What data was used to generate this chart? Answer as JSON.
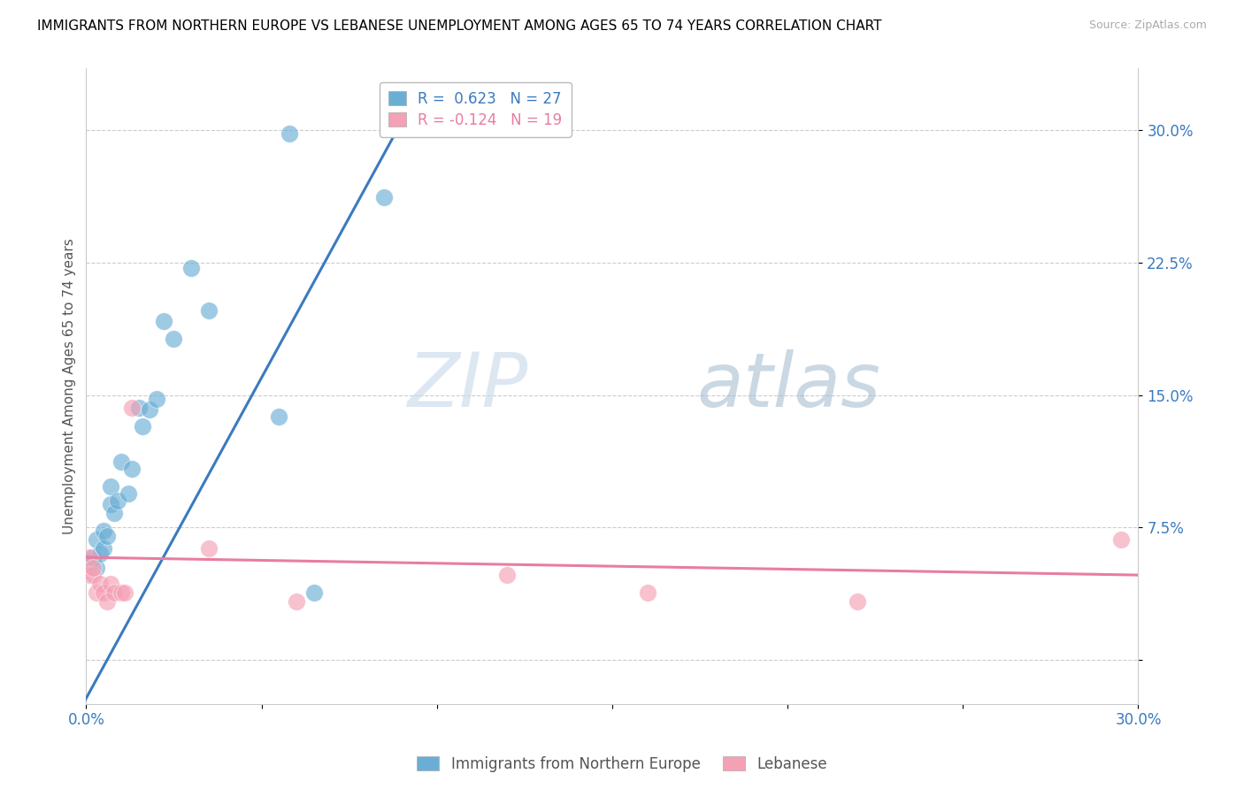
{
  "title": "IMMIGRANTS FROM NORTHERN EUROPE VS LEBANESE UNEMPLOYMENT AMONG AGES 65 TO 74 YEARS CORRELATION CHART",
  "source": "Source: ZipAtlas.com",
  "ylabel": "Unemployment Among Ages 65 to 74 years",
  "xlim": [
    0.0,
    0.3
  ],
  "ylim": [
    -0.025,
    0.335
  ],
  "xticks": [
    0.0,
    0.05,
    0.1,
    0.15,
    0.2,
    0.25,
    0.3
  ],
  "xticklabels": [
    "0.0%",
    "",
    "",
    "",
    "",
    "",
    "30.0%"
  ],
  "yticks": [
    0.0,
    0.075,
    0.15,
    0.225,
    0.3
  ],
  "yticklabels": [
    "",
    "7.5%",
    "15.0%",
    "22.5%",
    "30.0%"
  ],
  "blue_R": 0.623,
  "blue_N": 27,
  "pink_R": -0.124,
  "pink_N": 19,
  "blue_scatter": [
    [
      0.001,
      0.055
    ],
    [
      0.002,
      0.058
    ],
    [
      0.003,
      0.052
    ],
    [
      0.003,
      0.068
    ],
    [
      0.004,
      0.06
    ],
    [
      0.005,
      0.063
    ],
    [
      0.005,
      0.073
    ],
    [
      0.006,
      0.07
    ],
    [
      0.007,
      0.088
    ],
    [
      0.007,
      0.098
    ],
    [
      0.008,
      0.083
    ],
    [
      0.009,
      0.09
    ],
    [
      0.01,
      0.112
    ],
    [
      0.012,
      0.094
    ],
    [
      0.013,
      0.108
    ],
    [
      0.015,
      0.143
    ],
    [
      0.016,
      0.132
    ],
    [
      0.018,
      0.142
    ],
    [
      0.02,
      0.148
    ],
    [
      0.022,
      0.192
    ],
    [
      0.025,
      0.182
    ],
    [
      0.03,
      0.222
    ],
    [
      0.035,
      0.198
    ],
    [
      0.055,
      0.138
    ],
    [
      0.058,
      0.298
    ],
    [
      0.065,
      0.038
    ],
    [
      0.085,
      0.262
    ]
  ],
  "pink_scatter": [
    [
      0.001,
      0.048
    ],
    [
      0.001,
      0.058
    ],
    [
      0.002,
      0.048
    ],
    [
      0.002,
      0.052
    ],
    [
      0.003,
      0.038
    ],
    [
      0.004,
      0.043
    ],
    [
      0.005,
      0.038
    ],
    [
      0.006,
      0.033
    ],
    [
      0.007,
      0.043
    ],
    [
      0.008,
      0.038
    ],
    [
      0.01,
      0.038
    ],
    [
      0.011,
      0.038
    ],
    [
      0.013,
      0.143
    ],
    [
      0.035,
      0.063
    ],
    [
      0.06,
      0.033
    ],
    [
      0.12,
      0.048
    ],
    [
      0.16,
      0.038
    ],
    [
      0.22,
      0.033
    ],
    [
      0.295,
      0.068
    ]
  ],
  "blue_line_x": [
    -0.005,
    0.09
  ],
  "blue_line_y": [
    -0.04,
    0.305
  ],
  "pink_line_x": [
    0.0,
    0.3
  ],
  "pink_line_y": [
    0.058,
    0.048
  ],
  "blue_color": "#6aaed6",
  "pink_color": "#f4a0b5",
  "blue_line_color": "#3a7abf",
  "pink_line_color": "#e87da0",
  "watermark_zip": "ZIP",
  "watermark_atlas": "atlas",
  "grid_color": "#cccccc"
}
